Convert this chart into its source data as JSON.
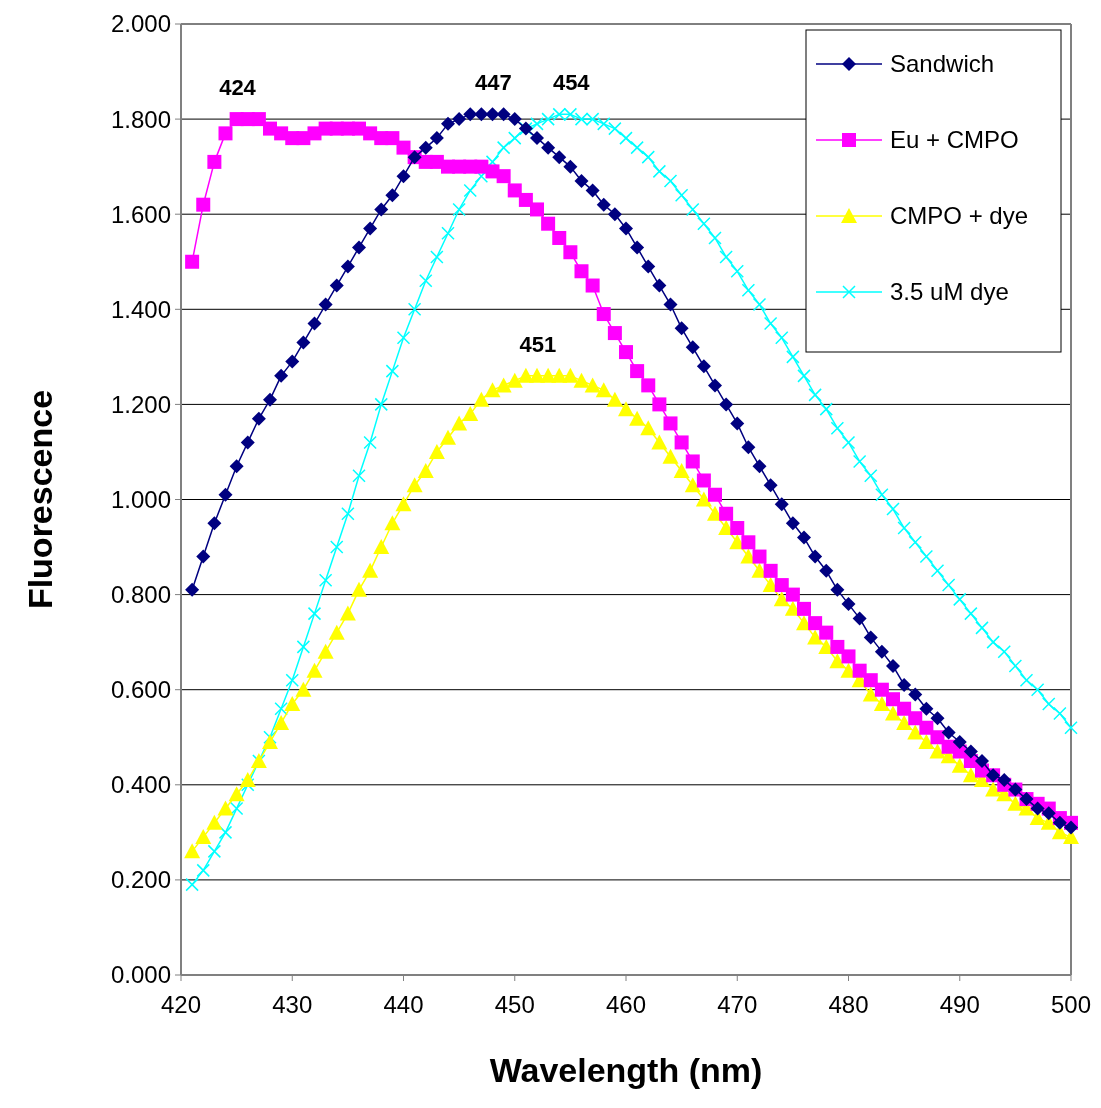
{
  "chart_data": {
    "type": "line",
    "xlabel": "Wavelength (nm)",
    "ylabel": "Fluorescence",
    "x": [
      421,
      422,
      423,
      424,
      425,
      426,
      427,
      428,
      429,
      430,
      431,
      432,
      433,
      434,
      435,
      436,
      437,
      438,
      439,
      440,
      441,
      442,
      443,
      444,
      445,
      446,
      447,
      448,
      449,
      450,
      451,
      452,
      453,
      454,
      455,
      456,
      457,
      458,
      459,
      460,
      461,
      462,
      463,
      464,
      465,
      466,
      467,
      468,
      469,
      470,
      471,
      472,
      473,
      474,
      475,
      476,
      477,
      478,
      479,
      480,
      481,
      482,
      483,
      484,
      485,
      486,
      487,
      488,
      489,
      490,
      491,
      492,
      493,
      494,
      495,
      496,
      497,
      498,
      499,
      500
    ],
    "series": [
      {
        "name": "Sandwich",
        "color": "#000080",
        "marker": "diamond",
        "values": [
          0.81,
          0.88,
          0.95,
          1.01,
          1.07,
          1.12,
          1.17,
          1.21,
          1.26,
          1.29,
          1.33,
          1.37,
          1.41,
          1.45,
          1.49,
          1.53,
          1.57,
          1.61,
          1.64,
          1.68,
          1.72,
          1.74,
          1.76,
          1.79,
          1.8,
          1.81,
          1.81,
          1.81,
          1.81,
          1.8,
          1.78,
          1.76,
          1.74,
          1.72,
          1.7,
          1.67,
          1.65,
          1.62,
          1.6,
          1.57,
          1.53,
          1.49,
          1.45,
          1.41,
          1.36,
          1.32,
          1.28,
          1.24,
          1.2,
          1.16,
          1.11,
          1.07,
          1.03,
          0.99,
          0.95,
          0.92,
          0.88,
          0.85,
          0.81,
          0.78,
          0.75,
          0.71,
          0.68,
          0.65,
          0.61,
          0.59,
          0.56,
          0.54,
          0.51,
          0.49,
          0.47,
          0.45,
          0.42,
          0.41,
          0.39,
          0.37,
          0.35,
          0.34,
          0.32,
          0.31
        ]
      },
      {
        "name": "Eu + CMPO",
        "color": "#ff00ff",
        "marker": "square",
        "values": [
          1.5,
          1.62,
          1.71,
          1.77,
          1.8,
          1.8,
          1.8,
          1.78,
          1.77,
          1.76,
          1.76,
          1.77,
          1.78,
          1.78,
          1.78,
          1.78,
          1.77,
          1.76,
          1.76,
          1.74,
          1.72,
          1.71,
          1.71,
          1.7,
          1.7,
          1.7,
          1.7,
          1.69,
          1.68,
          1.65,
          1.63,
          1.61,
          1.58,
          1.55,
          1.52,
          1.48,
          1.45,
          1.39,
          1.35,
          1.31,
          1.27,
          1.24,
          1.2,
          1.16,
          1.12,
          1.08,
          1.04,
          1.01,
          0.97,
          0.94,
          0.91,
          0.88,
          0.85,
          0.82,
          0.8,
          0.77,
          0.74,
          0.72,
          0.69,
          0.67,
          0.64,
          0.62,
          0.6,
          0.58,
          0.56,
          0.54,
          0.52,
          0.5,
          0.48,
          0.47,
          0.45,
          0.43,
          0.42,
          0.4,
          0.39,
          0.37,
          0.36,
          0.35,
          0.33,
          0.32
        ]
      },
      {
        "name": "CMPO + dye",
        "color": "#ffff00",
        "marker": "triangle",
        "values": [
          0.26,
          0.29,
          0.32,
          0.35,
          0.38,
          0.41,
          0.45,
          0.49,
          0.53,
          0.57,
          0.6,
          0.64,
          0.68,
          0.72,
          0.76,
          0.81,
          0.85,
          0.9,
          0.95,
          0.99,
          1.03,
          1.06,
          1.1,
          1.13,
          1.16,
          1.18,
          1.21,
          1.23,
          1.24,
          1.25,
          1.26,
          1.26,
          1.26,
          1.26,
          1.26,
          1.25,
          1.24,
          1.23,
          1.21,
          1.19,
          1.17,
          1.15,
          1.12,
          1.09,
          1.06,
          1.03,
          1.0,
          0.97,
          0.94,
          0.91,
          0.88,
          0.85,
          0.82,
          0.79,
          0.77,
          0.74,
          0.71,
          0.69,
          0.66,
          0.64,
          0.62,
          0.59,
          0.57,
          0.55,
          0.53,
          0.51,
          0.49,
          0.47,
          0.46,
          0.44,
          0.42,
          0.41,
          0.39,
          0.38,
          0.36,
          0.35,
          0.33,
          0.32,
          0.3,
          0.29
        ]
      },
      {
        "name": "3.5 uM dye",
        "color": "#00ffff",
        "marker": "cross",
        "values": [
          0.19,
          0.22,
          0.26,
          0.3,
          0.35,
          0.4,
          0.45,
          0.5,
          0.56,
          0.62,
          0.69,
          0.76,
          0.83,
          0.9,
          0.97,
          1.05,
          1.12,
          1.2,
          1.27,
          1.34,
          1.4,
          1.46,
          1.51,
          1.56,
          1.61,
          1.65,
          1.68,
          1.71,
          1.74,
          1.76,
          1.78,
          1.79,
          1.8,
          1.81,
          1.81,
          1.8,
          1.8,
          1.79,
          1.78,
          1.76,
          1.74,
          1.72,
          1.69,
          1.67,
          1.64,
          1.61,
          1.58,
          1.55,
          1.51,
          1.48,
          1.44,
          1.41,
          1.37,
          1.34,
          1.3,
          1.26,
          1.22,
          1.19,
          1.15,
          1.12,
          1.08,
          1.05,
          1.01,
          0.98,
          0.94,
          0.91,
          0.88,
          0.85,
          0.82,
          0.79,
          0.76,
          0.73,
          0.7,
          0.68,
          0.65,
          0.62,
          0.6,
          0.57,
          0.55,
          0.52
        ]
      }
    ],
    "annotations": [
      {
        "text": "424",
        "x": 424,
        "y": 1.8
      },
      {
        "text": "447",
        "x": 447,
        "y": 1.81
      },
      {
        "text": "454",
        "x": 454,
        "y": 1.81
      },
      {
        "text": "451",
        "x": 451,
        "y": 1.26
      }
    ],
    "xlim": [
      420,
      500
    ],
    "xticks": [
      420,
      430,
      440,
      450,
      460,
      470,
      480,
      490,
      500
    ],
    "ylim": [
      0,
      2
    ],
    "yticks": [
      {
        "value": 0,
        "label": "0.000"
      },
      {
        "value": 0.2,
        "label": "0.200"
      },
      {
        "value": 0.4,
        "label": "0.400"
      },
      {
        "value": 0.6,
        "label": "0.600"
      },
      {
        "value": 0.8,
        "label": "0.800"
      },
      {
        "value": 1,
        "label": "1.000"
      },
      {
        "value": 1.2,
        "label": "1.200"
      },
      {
        "value": 1.4,
        "label": "1.400"
      },
      {
        "value": 1.6,
        "label": "1.600"
      },
      {
        "value": 1.8,
        "label": "1.800"
      },
      {
        "value": 2,
        "label": "2.000"
      }
    ],
    "grid": "y",
    "legend": "top right"
  }
}
